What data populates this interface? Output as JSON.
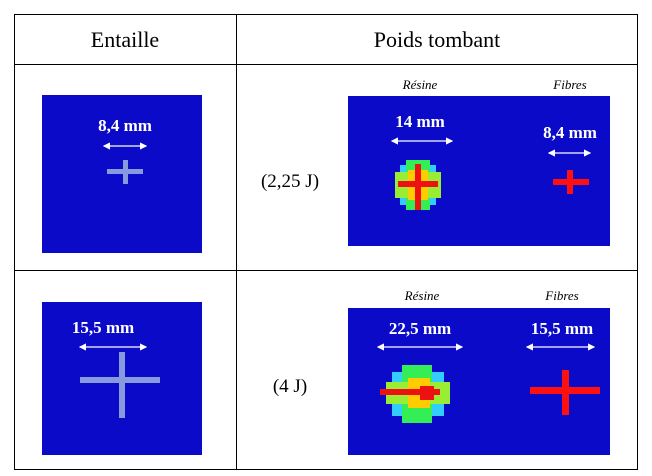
{
  "table": {
    "header": [
      "Entaille",
      "Poids tombant"
    ],
    "rows": [
      {
        "notch_size": "8,4 mm",
        "energy": "(2,25 J)",
        "resin_label": "Résine",
        "resin_size": "14 mm",
        "fibre_label": "Fibres",
        "fibre_size": "8,4 mm"
      },
      {
        "notch_size": "15,5 mm",
        "energy": "(4 J)",
        "resin_label": "Résine",
        "resin_size": "22,5 mm",
        "fibre_label": "Fibres",
        "fibre_size": "15,5 mm"
      }
    ]
  }
}
